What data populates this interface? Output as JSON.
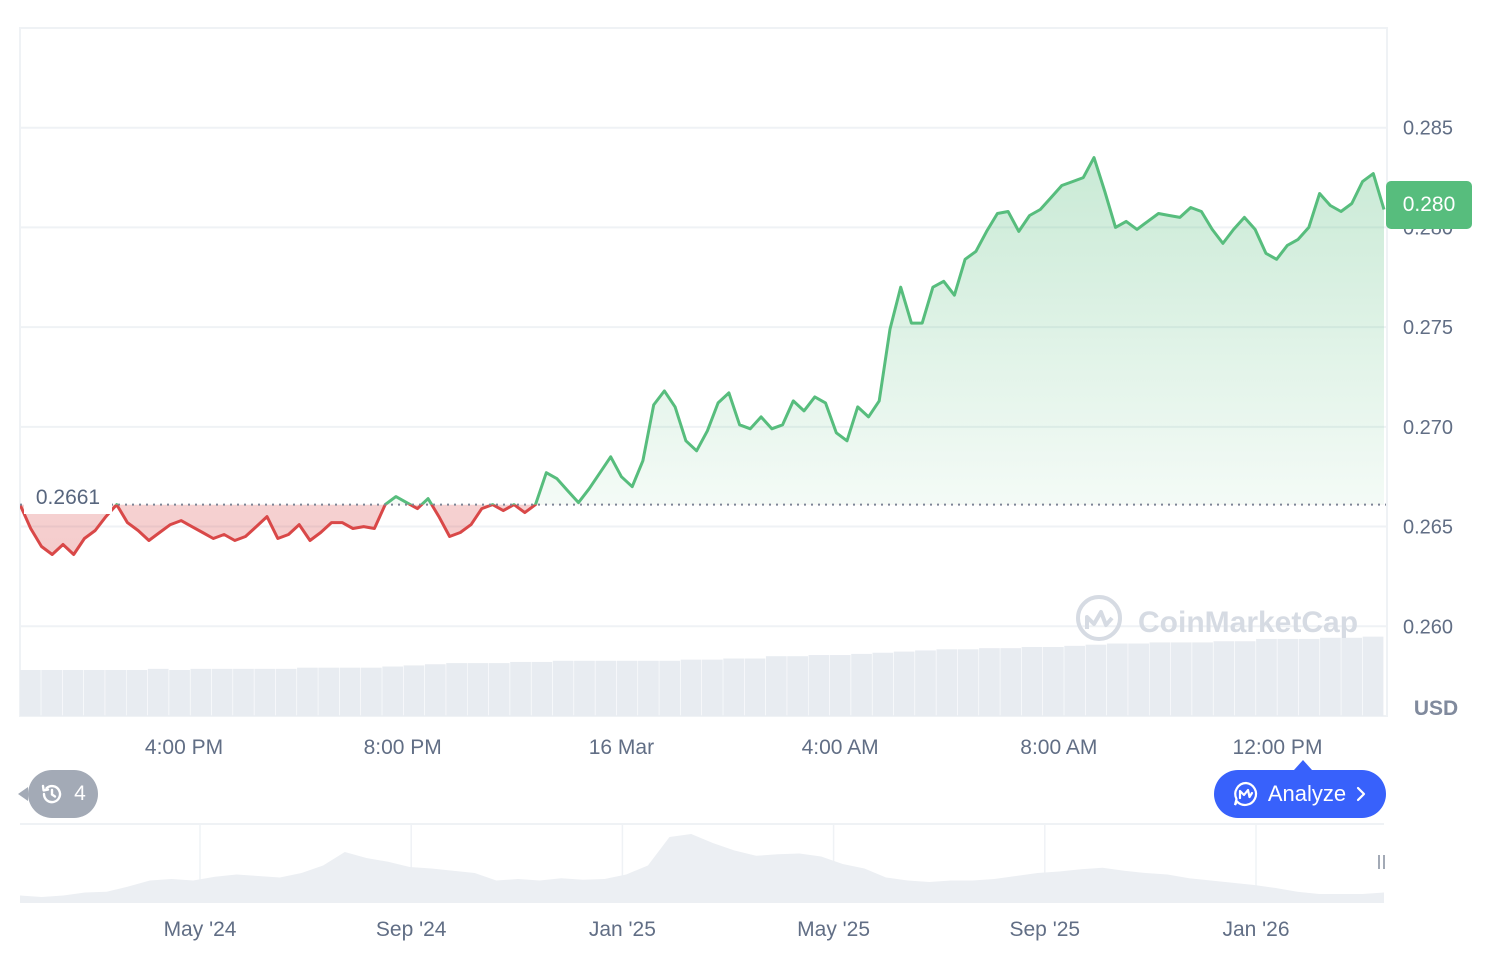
{
  "chart_data": {
    "type": "area",
    "currency": "USD",
    "current_price": "0.280",
    "reference_price": "0.2661",
    "y_ticks": [
      "0.285",
      "0.280",
      "0.275",
      "0.270",
      "0.265",
      "0.260"
    ],
    "ylim": [
      0.2555,
      0.29
    ],
    "x_ticks": [
      "4:00 PM",
      "8:00 PM",
      "16 Mar",
      "4:00 AM",
      "8:00 AM",
      "12:00 PM"
    ],
    "series": [
      {
        "values": [
          0.2661,
          0.2649,
          0.264,
          0.2636,
          0.2641,
          0.2636,
          0.2644,
          0.2648,
          0.2655,
          0.2661,
          0.2652,
          0.2648,
          0.2643,
          0.2647,
          0.2651,
          0.2653,
          0.265,
          0.2647,
          0.2644,
          0.2646,
          0.2643,
          0.2645,
          0.265,
          0.2655,
          0.2644,
          0.2646,
          0.2651,
          0.2643,
          0.2647,
          0.2652,
          0.2652,
          0.2649,
          0.265,
          0.2649,
          0.2661,
          0.2665,
          0.2662,
          0.2659,
          0.2664,
          0.2655,
          0.2645,
          0.2647,
          0.2651,
          0.2659,
          0.2661,
          0.2658,
          0.2661,
          0.2657,
          0.2661,
          0.2677,
          0.2674,
          0.2668,
          0.2662,
          0.2669,
          0.2677,
          0.2685,
          0.2675,
          0.267,
          0.2683,
          0.2711,
          0.2718,
          0.271,
          0.2693,
          0.2688,
          0.2698,
          0.2712,
          0.2717,
          0.2701,
          0.2699,
          0.2705,
          0.2699,
          0.2701,
          0.2713,
          0.2708,
          0.2715,
          0.2712,
          0.2697,
          0.2693,
          0.271,
          0.2705,
          0.2713,
          0.2749,
          0.277,
          0.2752,
          0.2752,
          0.277,
          0.2773,
          0.2766,
          0.2784,
          0.2788,
          0.2798,
          0.2807,
          0.2808,
          0.2798,
          0.2806,
          0.2809,
          0.2815,
          0.2821,
          0.2823,
          0.2825,
          0.2835,
          0.2818,
          0.28,
          0.2803,
          0.2799,
          0.2803,
          0.2807,
          0.2806,
          0.2805,
          0.281,
          0.2808,
          0.2799,
          0.2792,
          0.2799,
          0.2805,
          0.2799,
          0.2787,
          0.2784,
          0.2791,
          0.2794,
          0.28,
          0.2817,
          0.2811,
          0.2808,
          0.2812,
          0.2823,
          0.2827,
          0.2809
        ]
      }
    ],
    "volume": [
      0.4,
      0.4,
      0.4,
      0.4,
      0.4,
      0.4,
      0.41,
      0.4,
      0.41,
      0.41,
      0.41,
      0.41,
      0.41,
      0.42,
      0.42,
      0.42,
      0.42,
      0.43,
      0.44,
      0.45,
      0.46,
      0.46,
      0.46,
      0.47,
      0.47,
      0.48,
      0.48,
      0.48,
      0.48,
      0.48,
      0.48,
      0.49,
      0.49,
      0.5,
      0.5,
      0.52,
      0.52,
      0.53,
      0.53,
      0.54,
      0.55,
      0.56,
      0.57,
      0.58,
      0.58,
      0.59,
      0.59,
      0.6,
      0.6,
      0.61,
      0.62,
      0.63,
      0.63,
      0.64,
      0.64,
      0.64,
      0.65,
      0.65,
      0.67,
      0.67,
      0.67,
      0.68,
      0.68,
      0.69
    ],
    "overview": {
      "x_ticks": [
        "May '24",
        "Sep '24",
        "Jan '25",
        "May '25",
        "Sep '25",
        "Jan '26"
      ],
      "values": [
        0.1,
        0.08,
        0.1,
        0.14,
        0.15,
        0.22,
        0.3,
        0.32,
        0.3,
        0.35,
        0.38,
        0.36,
        0.34,
        0.4,
        0.5,
        0.68,
        0.6,
        0.55,
        0.48,
        0.46,
        0.43,
        0.4,
        0.3,
        0.32,
        0.3,
        0.33,
        0.31,
        0.32,
        0.38,
        0.5,
        0.88,
        0.92,
        0.8,
        0.7,
        0.63,
        0.65,
        0.66,
        0.62,
        0.52,
        0.46,
        0.34,
        0.3,
        0.28,
        0.3,
        0.3,
        0.32,
        0.36,
        0.4,
        0.42,
        0.45,
        0.47,
        0.43,
        0.4,
        0.38,
        0.33,
        0.3,
        0.27,
        0.24,
        0.2,
        0.15,
        0.12,
        0.12,
        0.12,
        0.14
      ]
    }
  },
  "watermark": "CoinMarketCap",
  "history": {
    "count": "4"
  },
  "analyze": {
    "label": "Analyze"
  },
  "colors": {
    "up": "#57bd7d",
    "down": "#d94848",
    "accent": "#3861fb"
  }
}
